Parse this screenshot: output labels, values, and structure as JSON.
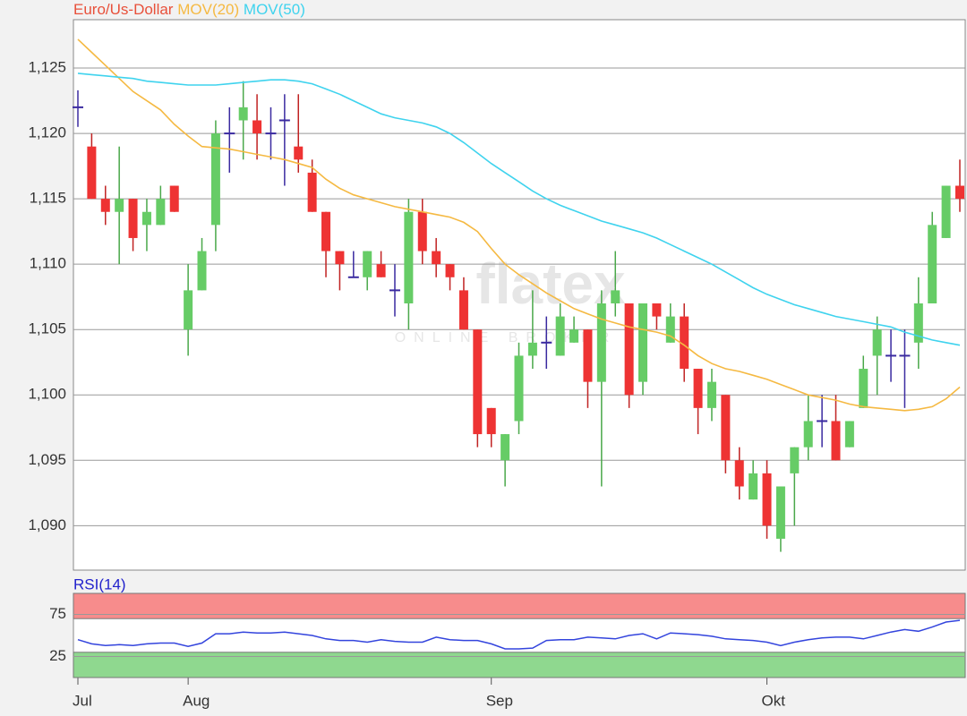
{
  "chart_data": [
    {
      "type": "candlestick",
      "title": "Euro/Us-Dollar",
      "title_color": "#e8503a",
      "watermark": "flatex",
      "watermark_sub": "ONLINE BROKER",
      "categories": [
        "Jul",
        null,
        null,
        null,
        null,
        null,
        null,
        null,
        "Aug",
        null,
        null,
        null,
        null,
        null,
        null,
        null,
        null,
        null,
        null,
        null,
        null,
        null,
        null,
        null,
        null,
        null,
        null,
        null,
        null,
        null,
        "Sep",
        null,
        null,
        null,
        null,
        null,
        null,
        null,
        null,
        null,
        null,
        null,
        null,
        null,
        null,
        null,
        null,
        null,
        null,
        null,
        "Okt",
        null,
        null,
        null,
        null,
        null,
        null,
        null,
        null,
        null,
        null,
        null,
        null,
        null,
        null
      ],
      "open": [
        1.122,
        1.119,
        1.115,
        1.114,
        1.115,
        1.113,
        1.113,
        1.116,
        1.105,
        1.108,
        1.113,
        1.12,
        1.121,
        1.121,
        1.12,
        1.121,
        1.119,
        1.117,
        1.114,
        1.111,
        1.109,
        1.109,
        1.11,
        1.108,
        1.107,
        1.114,
        1.111,
        1.11,
        1.108,
        1.105,
        1.099,
        1.095,
        1.098,
        1.103,
        1.104,
        1.103,
        1.104,
        1.105,
        1.101,
        1.107,
        1.107,
        1.101,
        1.107,
        1.104,
        1.106,
        1.102,
        1.099,
        1.1,
        1.095,
        1.092,
        1.094,
        1.089,
        1.094,
        1.096,
        1.098,
        1.098,
        1.096,
        1.099,
        1.103,
        1.103,
        1.103,
        1.104,
        1.107,
        1.112,
        1.116
      ],
      "high": [
        1.1233,
        1.12,
        1.116,
        1.119,
        1.115,
        1.115,
        1.116,
        1.116,
        1.11,
        1.112,
        1.121,
        1.122,
        1.124,
        1.123,
        1.122,
        1.123,
        1.123,
        1.118,
        1.114,
        1.111,
        1.111,
        1.111,
        1.111,
        1.11,
        1.115,
        1.115,
        1.112,
        1.11,
        1.109,
        1.105,
        1.099,
        1.097,
        1.104,
        1.108,
        1.106,
        1.107,
        1.106,
        1.105,
        1.108,
        1.111,
        1.107,
        1.107,
        1.107,
        1.107,
        1.107,
        1.102,
        1.102,
        1.1,
        1.096,
        1.095,
        1.095,
        1.093,
        1.096,
        1.1,
        1.1,
        1.1,
        1.098,
        1.103,
        1.106,
        1.105,
        1.105,
        1.109,
        1.114,
        1.116,
        1.118
      ],
      "low": [
        1.1205,
        1.115,
        1.113,
        1.11,
        1.111,
        1.111,
        1.113,
        1.114,
        1.103,
        1.108,
        1.111,
        1.117,
        1.118,
        1.118,
        1.118,
        1.116,
        1.117,
        1.114,
        1.109,
        1.108,
        1.109,
        1.108,
        1.109,
        1.106,
        1.105,
        1.11,
        1.109,
        1.108,
        1.105,
        1.096,
        1.096,
        1.093,
        1.097,
        1.102,
        1.102,
        1.103,
        1.104,
        1.099,
        1.093,
        1.106,
        1.099,
        1.1,
        1.105,
        1.104,
        1.101,
        1.097,
        1.098,
        1.094,
        1.092,
        1.092,
        1.089,
        1.088,
        1.09,
        1.095,
        1.096,
        1.095,
        1.096,
        1.099,
        1.1,
        1.101,
        1.099,
        1.102,
        1.107,
        1.112,
        1.114
      ],
      "close": [
        1.122,
        1.115,
        1.114,
        1.115,
        1.112,
        1.114,
        1.115,
        1.114,
        1.108,
        1.111,
        1.12,
        1.12,
        1.122,
        1.12,
        1.12,
        1.121,
        1.118,
        1.114,
        1.111,
        1.11,
        1.109,
        1.111,
        1.109,
        1.108,
        1.114,
        1.111,
        1.11,
        1.109,
        1.105,
        1.097,
        1.097,
        1.097,
        1.103,
        1.104,
        1.104,
        1.106,
        1.105,
        1.101,
        1.107,
        1.108,
        1.1,
        1.107,
        1.106,
        1.106,
        1.102,
        1.099,
        1.101,
        1.095,
        1.093,
        1.094,
        1.09,
        1.093,
        1.096,
        1.098,
        1.098,
        1.095,
        1.098,
        1.102,
        1.105,
        1.103,
        1.103,
        1.107,
        1.113,
        1.116,
        1.115
      ],
      "up_color": "#66cc66",
      "down_color": "#ee3333",
      "doji_color": "#3a2aa0",
      "series": [
        {
          "name": "MOV(20)",
          "color": "#f5b942",
          "values": [
            1.1272,
            1.1262,
            1.1252,
            1.1242,
            1.1232,
            1.1225,
            1.1218,
            1.1207,
            1.1198,
            1.119,
            1.1189,
            1.1188,
            1.1186,
            1.1184,
            1.1182,
            1.118,
            1.1177,
            1.1174,
            1.1165,
            1.1158,
            1.1153,
            1.115,
            1.1147,
            1.1144,
            1.1142,
            1.114,
            1.1138,
            1.1136,
            1.1132,
            1.1125,
            1.1112,
            1.11,
            1.1092,
            1.1085,
            1.1078,
            1.1072,
            1.1066,
            1.1062,
            1.1058,
            1.1055,
            1.1052,
            1.105,
            1.1048,
            1.1045,
            1.1038,
            1.103,
            1.1024,
            1.102,
            1.1018,
            1.1015,
            1.1012,
            1.1008,
            1.1004,
            1.1,
            1.0998,
            1.0996,
            1.0993,
            1.0991,
            1.099,
            1.0989,
            1.0988,
            1.0989,
            1.0991,
            1.0997,
            1.1006
          ]
        },
        {
          "name": "MOV(50)",
          "color": "#3fd3ee",
          "values": [
            1.1246,
            1.1245,
            1.1244,
            1.1243,
            1.1242,
            1.124,
            1.1239,
            1.1238,
            1.1237,
            1.1237,
            1.1237,
            1.1238,
            1.1239,
            1.124,
            1.1241,
            1.1241,
            1.124,
            1.1238,
            1.1234,
            1.123,
            1.1225,
            1.122,
            1.1215,
            1.1212,
            1.121,
            1.1208,
            1.1205,
            1.12,
            1.1193,
            1.1185,
            1.1177,
            1.117,
            1.1163,
            1.1156,
            1.115,
            1.1145,
            1.1141,
            1.1137,
            1.1133,
            1.113,
            1.1127,
            1.1124,
            1.112,
            1.1115,
            1.111,
            1.1105,
            1.11,
            1.1094,
            1.1088,
            1.1082,
            1.1077,
            1.1073,
            1.1069,
            1.1066,
            1.1063,
            1.106,
            1.1058,
            1.1056,
            1.1054,
            1.1052,
            1.1048,
            1.1045,
            1.1042,
            1.104,
            1.1038
          ]
        }
      ],
      "ylim": [
        1.0866,
        1.1287
      ],
      "yticks": [
        {
          "value": 1.09,
          "label": "1,090"
        },
        {
          "value": 1.095,
          "label": "1,095"
        },
        {
          "value": 1.1,
          "label": "1,100"
        },
        {
          "value": 1.105,
          "label": "1,105"
        },
        {
          "value": 1.11,
          "label": "1,110"
        },
        {
          "value": 1.115,
          "label": "1,115"
        },
        {
          "value": 1.12,
          "label": "1,120"
        },
        {
          "value": 1.125,
          "label": "1,125"
        }
      ],
      "grid": true
    },
    {
      "type": "line",
      "title": "RSI(14)",
      "title_color": "#2222cc",
      "color": "#3344dd",
      "values": [
        45,
        40,
        38,
        39,
        38,
        40,
        41,
        41,
        37,
        41,
        52,
        52,
        54,
        53,
        53,
        54,
        52,
        50,
        46,
        44,
        44,
        42,
        45,
        43,
        42,
        42,
        48,
        45,
        44,
        44,
        40,
        34,
        34,
        35,
        44,
        45,
        45,
        48,
        47,
        46,
        50,
        52,
        46,
        53,
        52,
        51,
        49,
        46,
        45,
        44,
        42,
        38,
        42,
        45,
        47,
        48,
        48,
        46,
        50,
        54,
        57,
        55,
        60,
        66,
        68
      ],
      "ylim": [
        0,
        100
      ],
      "yticks": [
        25,
        75
      ],
      "grid": true,
      "overbought": [
        70,
        100
      ],
      "overbought_color": "#f78c8c",
      "oversold": [
        0,
        30
      ],
      "oversold_color": "#8fd88f"
    }
  ]
}
